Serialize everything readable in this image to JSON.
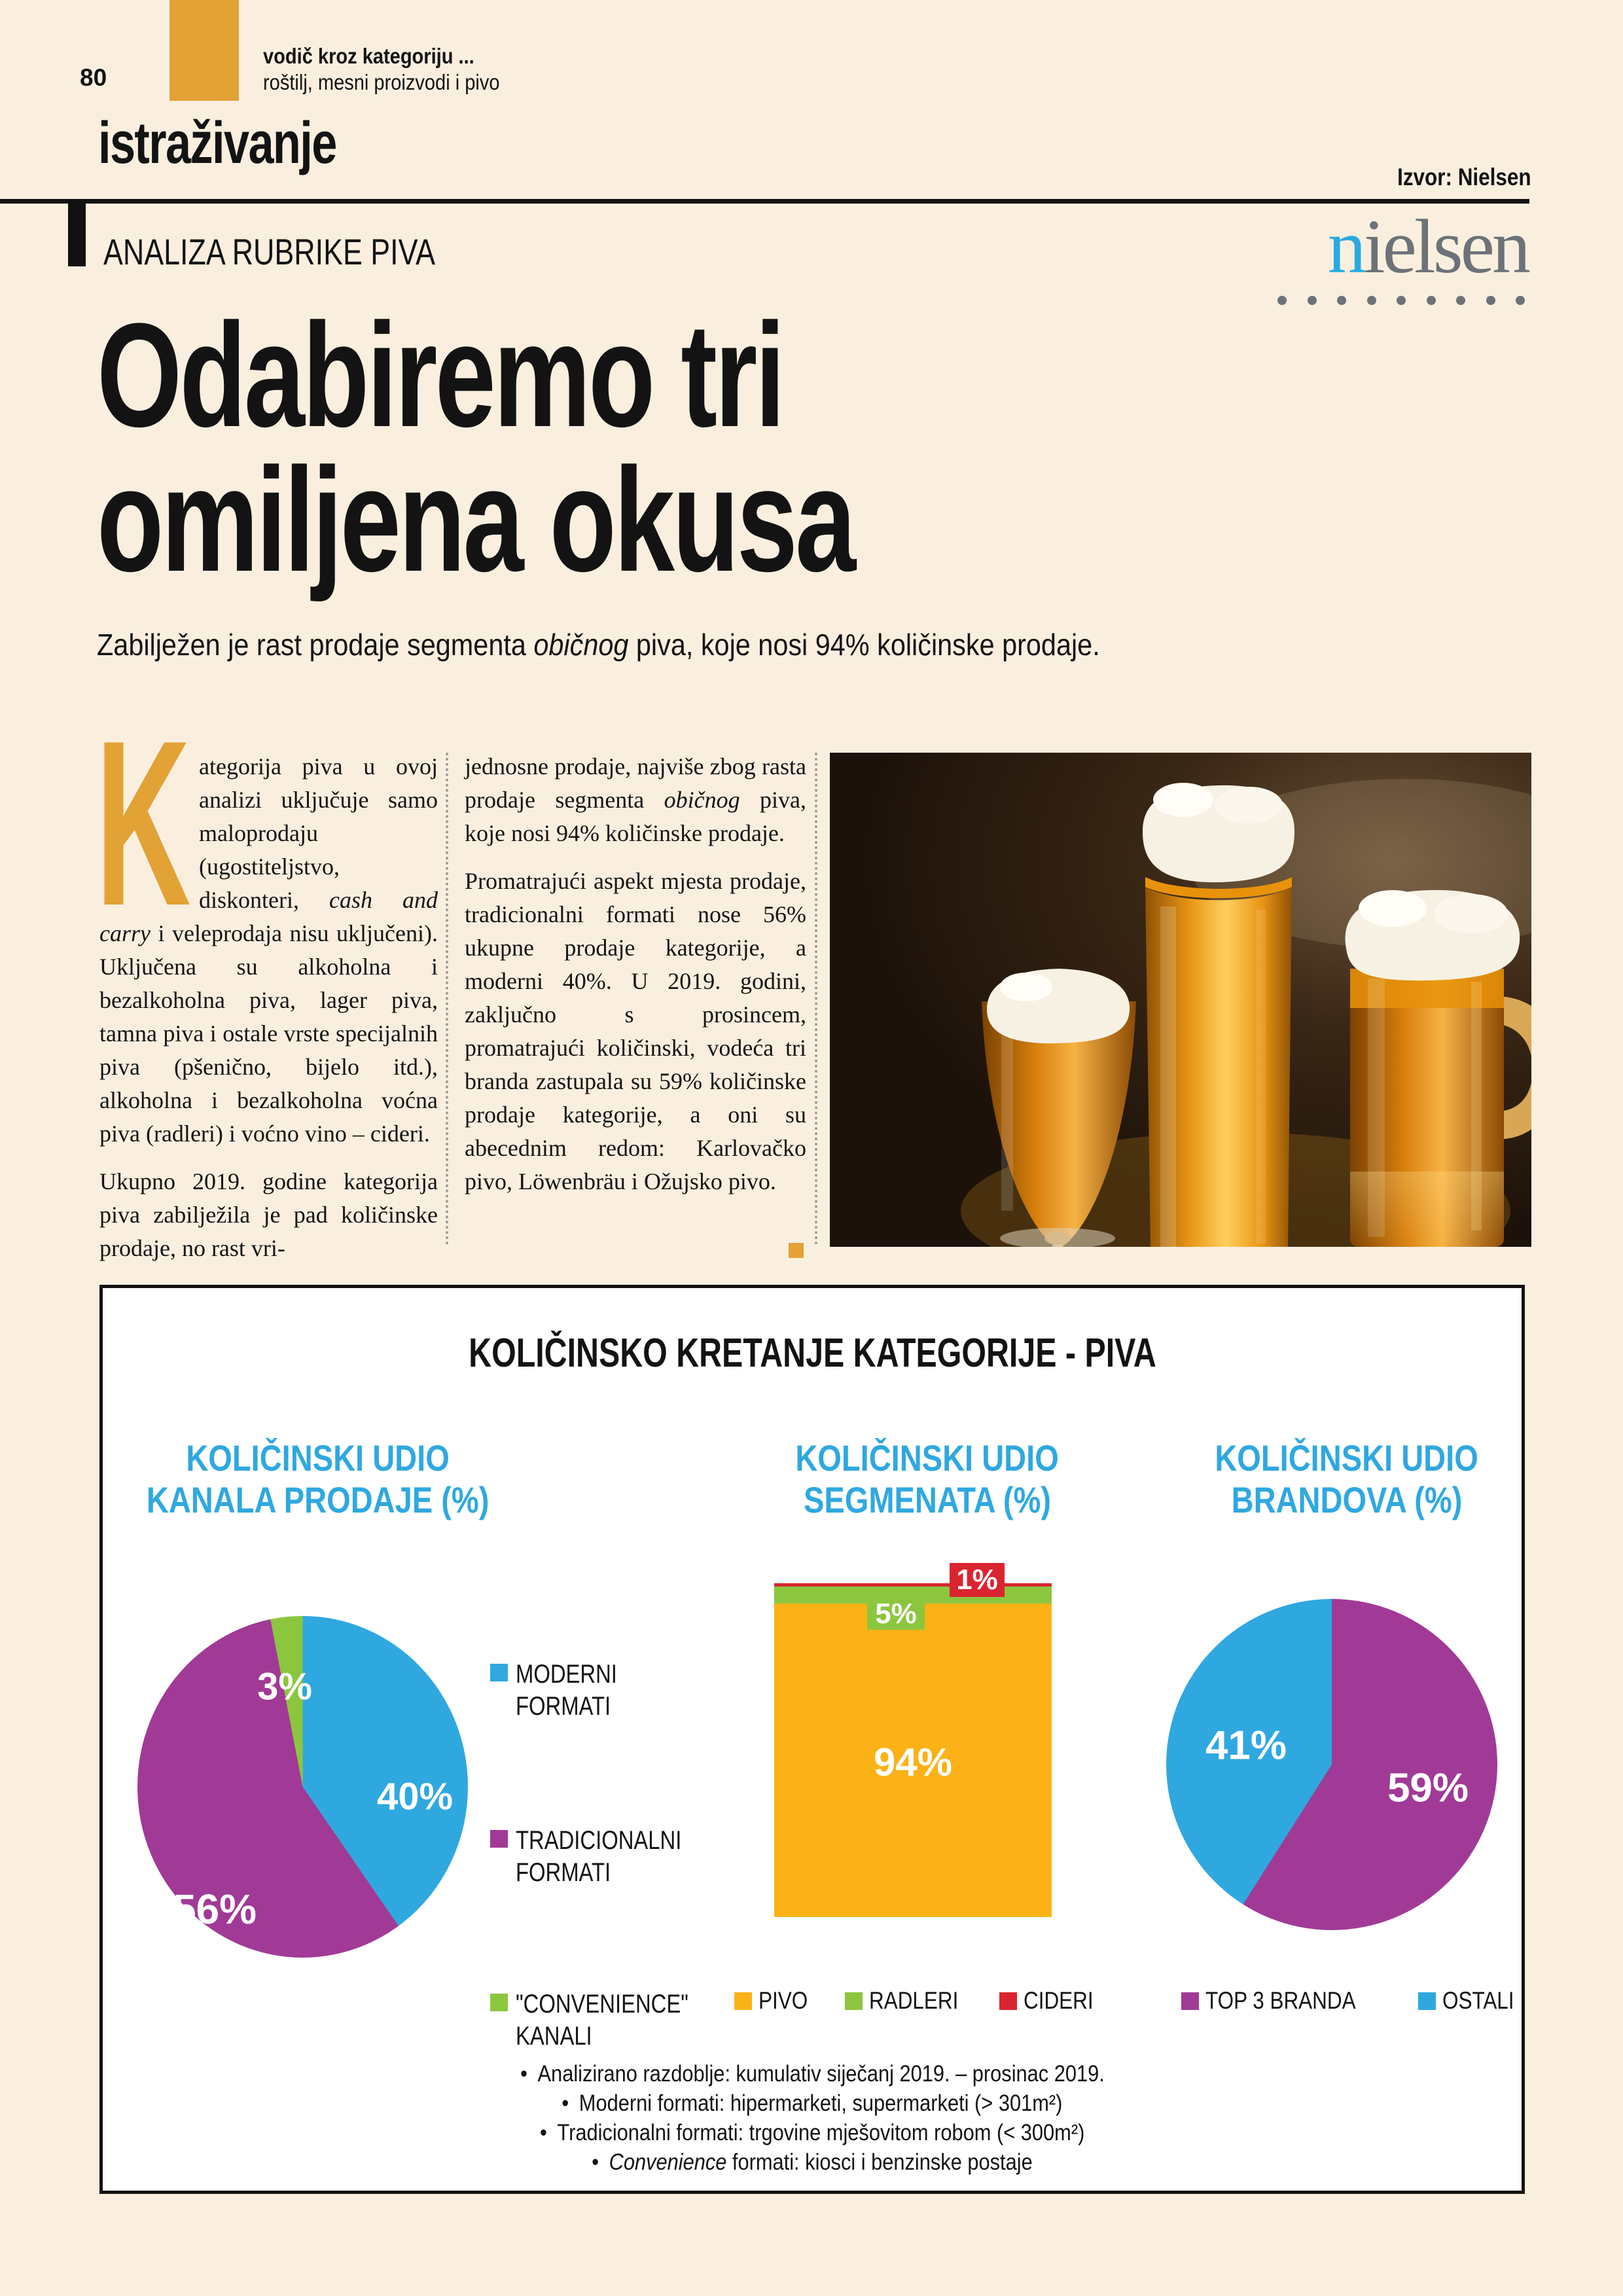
{
  "colors": {
    "cream": "#FAEFDF",
    "gold": "#E2A236",
    "blue": "#2FA8E0",
    "purple": "#A03A96",
    "green": "#8CC63F",
    "red": "#DA2430",
    "orange_bar": "#FBB216",
    "nielsen_gray": "#6C7278"
  },
  "header": {
    "page_number": "80",
    "kicker_bold": "vodič kroz kategoriju ...",
    "kicker_sub": "roštilj, mesni proizvodi i pivo",
    "section": "istraživanje",
    "source_label": "Izvor: Nielsen",
    "rubric": "ANALIZA RUBRIKE PIVA",
    "nielsen_logo_first": "n",
    "nielsen_logo_rest": "ielsen"
  },
  "article": {
    "title_line1": "Odabiremo tri",
    "title_line2": "omiljena okusa",
    "lead_pre": "Zabilježen je rast prodaje segmenta ",
    "lead_italic": "običnog",
    "lead_post": " piva, koje nosi 94% količinske prodaje.",
    "dropcap": "K",
    "col1_p1_pre": "ategorija piva u ovoj analizi uključuje samo maloprodaju (ugostiteljstvo, diskonteri, ",
    "col1_p1_italic": "cash and carry",
    "col1_p1_post": " i veleprodaja nisu uključeni). Uključena su alkoholna i bezalkoholna piva, lager piva, tamna piva i ostale vrste specijalnih piva (pšenično, bijelo itd.), alkoholna i bezalkoholna voćna piva (radleri) i voćno vino – cideri.",
    "col1_p2": "Ukupno 2019. godine kategorija piva zabilježila je pad količinske prodaje, no rast vri-",
    "col2_p1_pre": "jednosne prodaje, najviše zbog rasta prodaje segmenta ",
    "col2_p1_italic": "običnog",
    "col2_p1_post": " piva, koje nosi 94% količinske prodaje.",
    "col2_p2": "Promatrajući aspekt mjesta prodaje, tradicionalni formati nose 56% ukupne prodaje kategorije, a moderni 40%. U 2019. godini, zaključno s prosincem, promatrajući količinski, vodeća tri branda zastupala su 59% količinske prodaje kategorije, a oni su abecednim redom: Karlovačko pivo, Löwenbräu i Ožujsko pivo."
  },
  "chart_panel": {
    "title": "KOLIČINSKO KRETANJE KATEGORIJE - PIVA",
    "heading1_l1": "KOLIČINSKI UDIO",
    "heading1_l2": "KANALA PRODAJE (%)",
    "heading2_l1": "KOLIČINSKI UDIO",
    "heading2_l2": "SEGMENATA (%)",
    "heading3_l1": "KOLIČINSKI UDIO",
    "heading3_l2": "BRANDOVA (%)",
    "footnotes": {
      "bullet": "•",
      "f1": "Analizirano razdoblje: kumulativ siječanj 2019. – prosinac 2019.",
      "f2": "Moderni formati: hipermarketi, supermarketi (> 301m²)",
      "f3": "Tradicionalni formati: trgovine mješovitom robom (< 300m²)",
      "f4_italic": "Convenience",
      "f4_rest": " formati: kiosci i benzinske postaje"
    }
  },
  "chart_data": [
    {
      "type": "pie",
      "title": "KOLIČINSKI UDIO KANALA PRODAJE (%)",
      "start_angle_deg": 0,
      "direction": "clockwise",
      "legend_position": "right",
      "series": [
        {
          "label": "MODERNI FORMATI",
          "value": 40,
          "pct": "40%",
          "color": "#2FA8E0"
        },
        {
          "label": "TRADICIONALNI FORMATI",
          "value": 56,
          "pct": "56%",
          "color": "#A03A96"
        },
        {
          "label": "\"CONVENIENCE\" KANALI",
          "value": 3,
          "pct": "3%",
          "color": "#8CC63F"
        }
      ]
    },
    {
      "type": "bar",
      "subtype": "stacked-percentage-column",
      "title": "KOLIČINSKI UDIO SEGMENATA (%)",
      "stack_order": "bottom-to-top",
      "legend_position": "bottom",
      "series": [
        {
          "label": "PIVO",
          "value": 94,
          "pct": "94%",
          "color": "#FBB216"
        },
        {
          "label": "RADLERI",
          "value": 5,
          "pct": "5%",
          "color": "#8CC63F"
        },
        {
          "label": "CIDERI",
          "value": 1,
          "pct": "1%",
          "color": "#DA2430"
        }
      ]
    },
    {
      "type": "pie",
      "title": "KOLIČINSKI UDIO BRANDOVA (%)",
      "start_angle_deg": 0,
      "direction": "clockwise",
      "legend_position": "bottom",
      "series": [
        {
          "label": "TOP 3 BRANDA",
          "value": 59,
          "pct": "59%",
          "color": "#A03A96"
        },
        {
          "label": "OSTALI",
          "value": 41,
          "pct": "41%",
          "color": "#2FA8E0"
        }
      ]
    }
  ]
}
